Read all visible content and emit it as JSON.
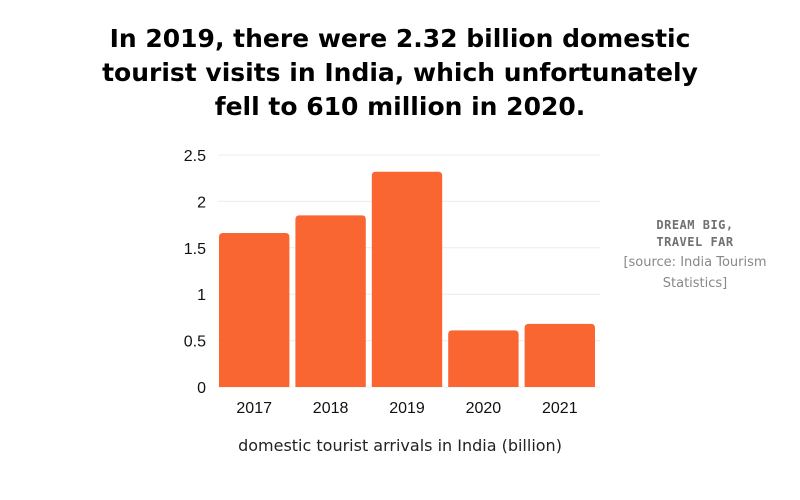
{
  "title_lines": [
    "In 2019, there were 2.32 billion domestic",
    "tourist visits in India, which unfortunately",
    "fell to 610 million in 2020."
  ],
  "side_note": {
    "brand_line1": "DREAM BIG,",
    "brand_line2": "TRAVEL FAR",
    "source": "[source: India Tourism Statistics]"
  },
  "chart_data": {
    "type": "bar",
    "title": "In 2019, there were 2.32 billion domestic tourist visits in India, which unfortunately fell to 610 million in 2020.",
    "categories": [
      "2017",
      "2018",
      "2019",
      "2020",
      "2021"
    ],
    "values": [
      1.66,
      1.85,
      2.32,
      0.61,
      0.68
    ],
    "xlabel": "domestic tourist arrivals in India (billion)",
    "ylabel": "",
    "ylim": [
      0,
      2.5
    ],
    "yticks": [
      "0",
      "0.5",
      "1",
      "1.5",
      "2",
      "2.5"
    ],
    "grid": true,
    "bar_color": "#FA6632"
  }
}
